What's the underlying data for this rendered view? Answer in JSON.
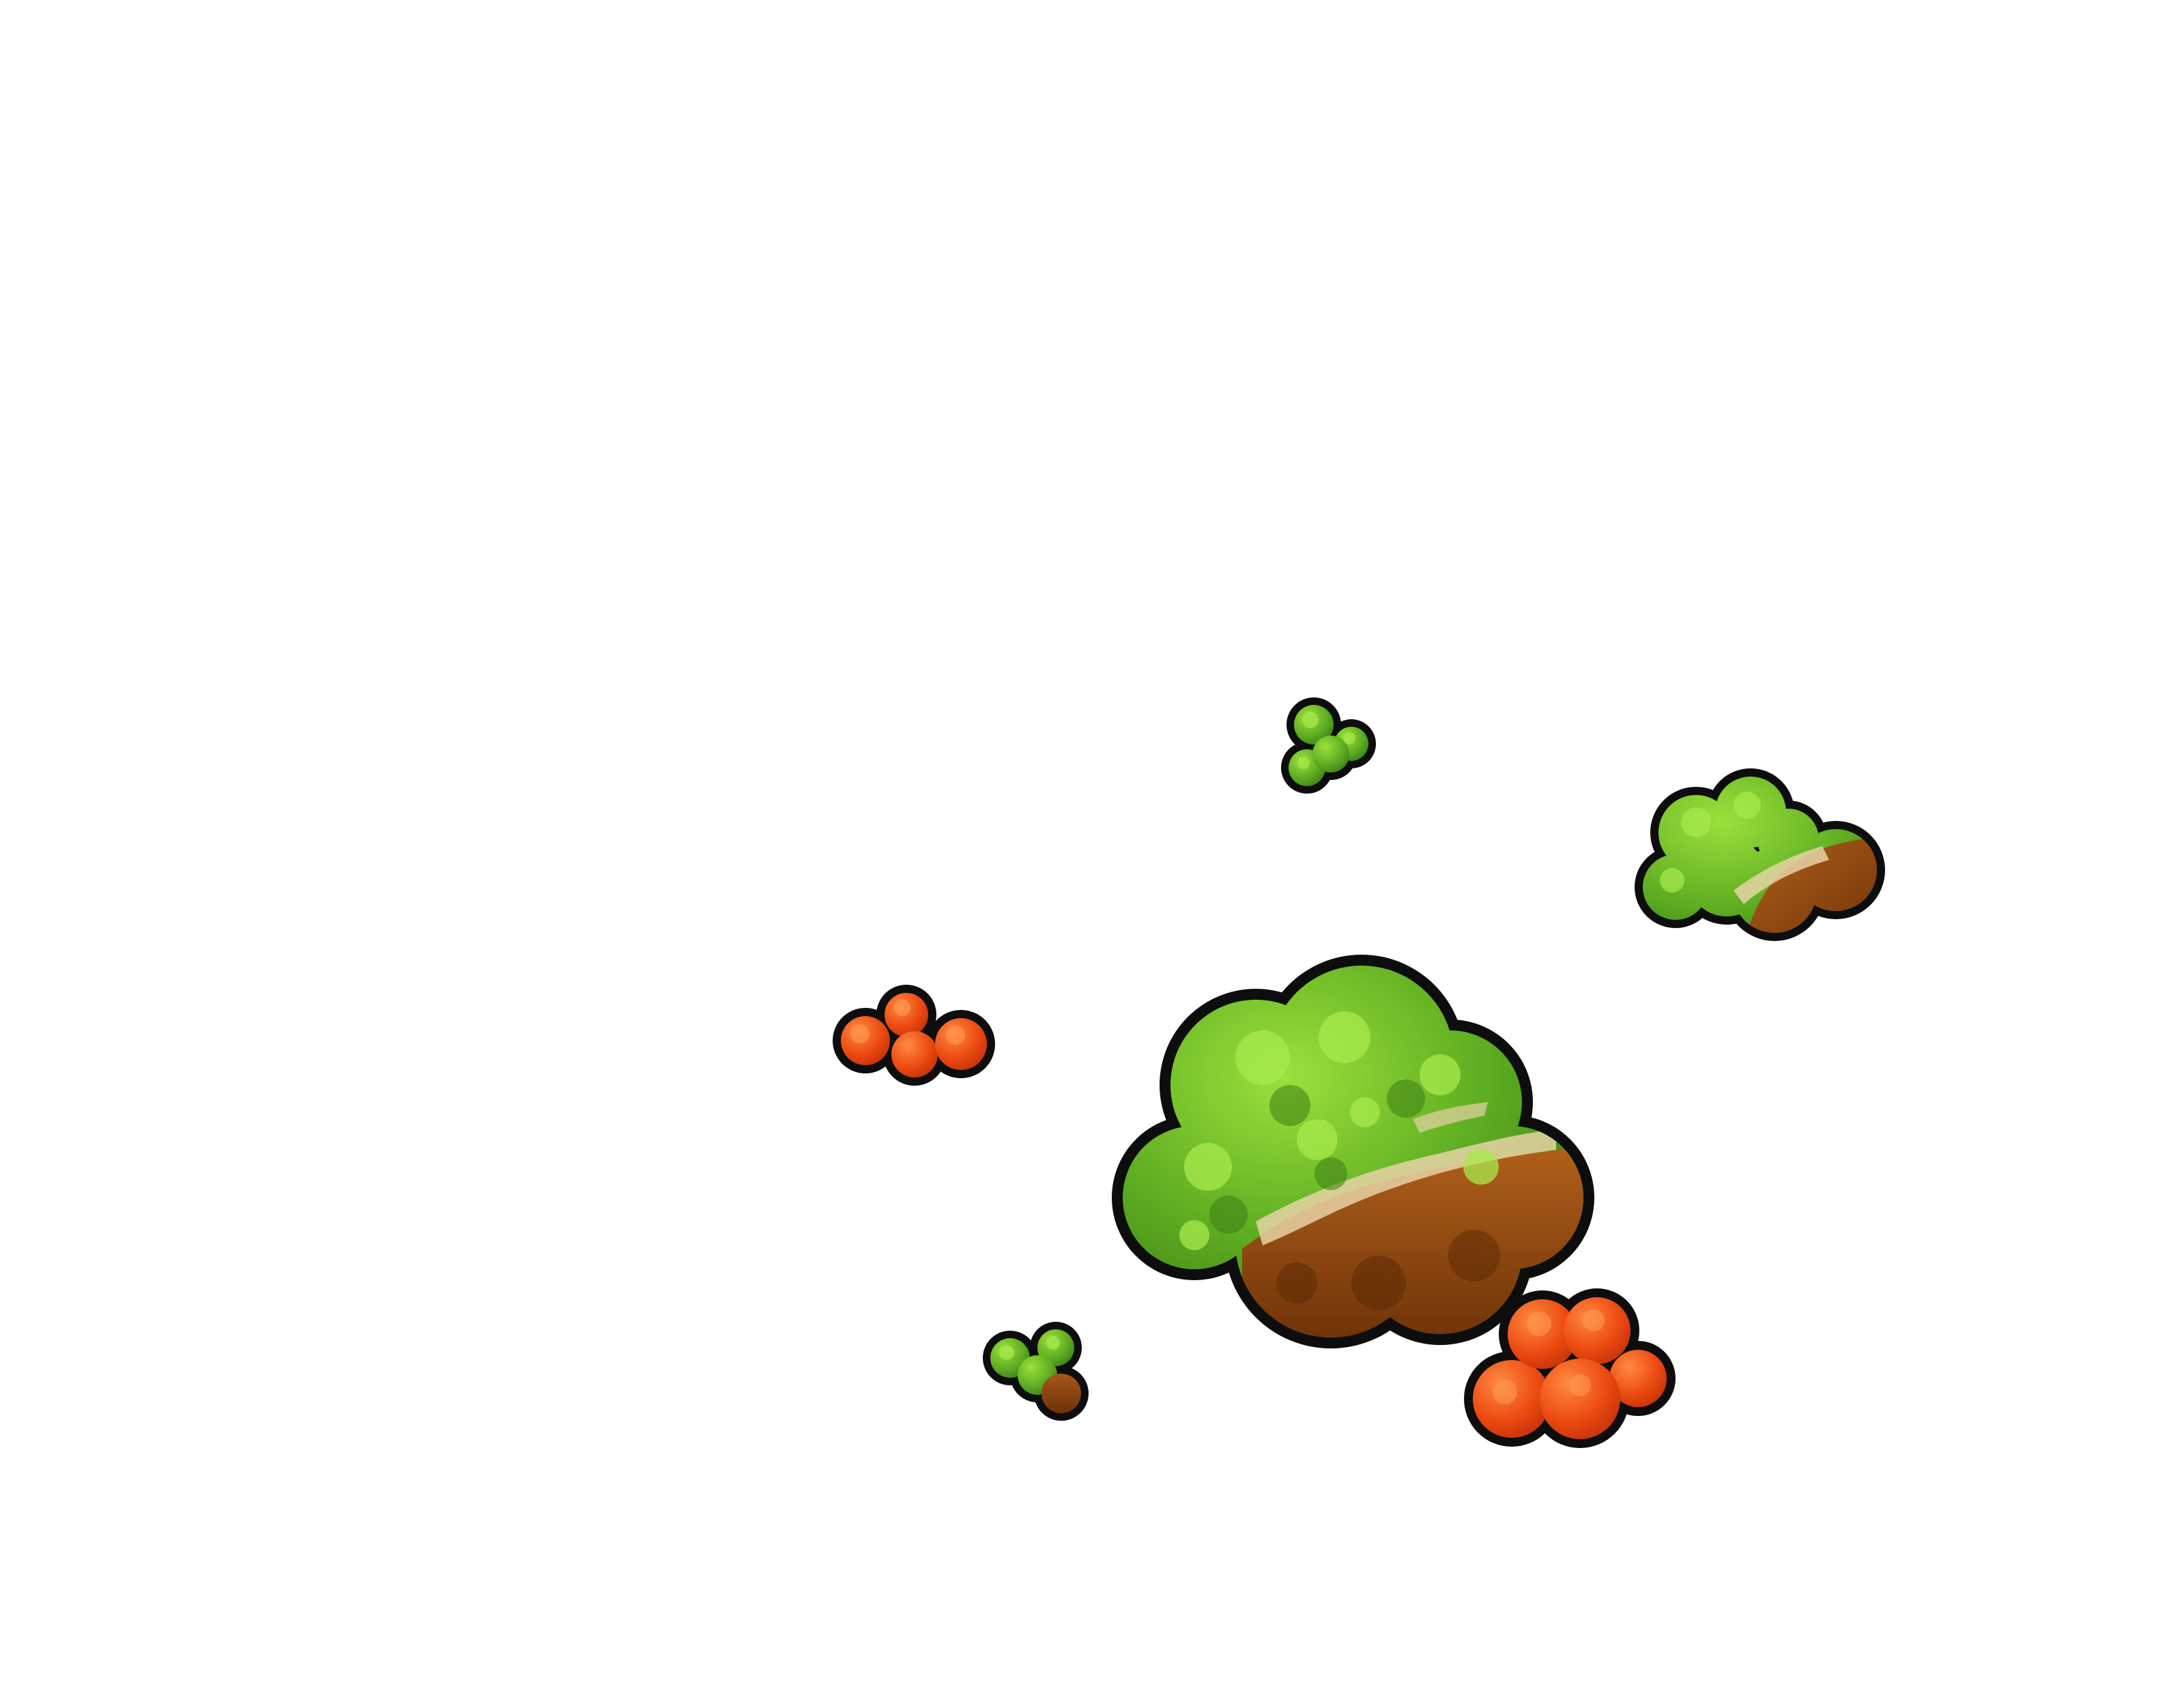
{
  "scene": {
    "background_color": "#ffffff",
    "outline_color": "#0d0d0d",
    "palette": {
      "green_light": "#8fd836",
      "green_mid": "#5fae22",
      "green_dark": "#3c7d14",
      "brown": "#9a4c12",
      "brown_dark": "#6e3208",
      "sand": "#e6d2a4",
      "orange_light": "#ff7a32",
      "orange_mid": "#ec4a12",
      "orange_dark": "#c23006"
    },
    "sprites": [
      {
        "name": "bush-large",
        "kind": "green bush with brown and sand patches"
      },
      {
        "name": "bush-green-brown-right",
        "kind": "green and brown bush"
      },
      {
        "name": "bush-green-small-top",
        "kind": "small green bush"
      },
      {
        "name": "bush-orange-left",
        "kind": "small orange bush"
      },
      {
        "name": "bush-orange-bottom-right",
        "kind": "orange bush"
      },
      {
        "name": "bush-green-small-bottom",
        "kind": "small green and brown bush"
      }
    ]
  }
}
